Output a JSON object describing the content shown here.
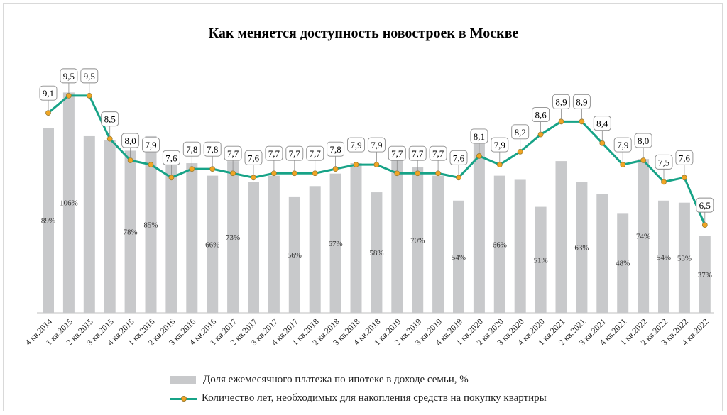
{
  "chart_data": {
    "type": "bar+line",
    "title": "Как меняется доступность новостроек в Москве",
    "categories": [
      "4 кв.2014",
      "1 кв.2015",
      "2 кв.2015",
      "3 кв.2015",
      "4 кв.2015",
      "1 кв.2016",
      "2 кв.2016",
      "3 кв.2016",
      "4 кв.2016",
      "1 кв.2017",
      "2 кв.2017",
      "3 кв.2017",
      "4 кв.2017",
      "1 кв.2018",
      "2 кв.2018",
      "3 кв.2018",
      "4 кв.2018",
      "1 кв.2019",
      "2 кв.2019",
      "3 кв.2019",
      "4 кв.2019",
      "1 кв.2020",
      "2 кв.2020",
      "3 кв.2020",
      "4 кв.2020",
      "1 кв.2021",
      "2 кв.2021",
      "3 кв.2021",
      "4 кв.2021",
      "1 кв.2022",
      "2 кв.2022",
      "3 кв.2022",
      "4 кв.2022"
    ],
    "series": [
      {
        "name": "Доля ежемесячного платежа по ипотеке в доходе семьи, %",
        "kind": "bar",
        "color": "#c8c9cb",
        "values": [
          89,
          106,
          85,
          83,
          78,
          85,
          78,
          72,
          66,
          73,
          63,
          66,
          56,
          61,
          67,
          72,
          58,
          79,
          70,
          66,
          54,
          84,
          66,
          64,
          51,
          73,
          63,
          57,
          48,
          74,
          54,
          53,
          37
        ],
        "labels": [
          "89%",
          "106%",
          "",
          "",
          "78%",
          "85%",
          "",
          "",
          "66%",
          "73%",
          "",
          "",
          "56%",
          "",
          "67%",
          "",
          "58%",
          "",
          "70%",
          "",
          "54%",
          "",
          "66%",
          "",
          "51%",
          "",
          "63%",
          "",
          "48%",
          "74%",
          "54%",
          "53%",
          "37%"
        ]
      },
      {
        "name": "Количество лет, необходимых для накопления средств на покупку квартиры",
        "kind": "line",
        "color": "#17a387",
        "marker_color": "#f0a524",
        "values": [
          9.1,
          9.5,
          9.5,
          8.5,
          8.0,
          7.9,
          7.6,
          7.8,
          7.8,
          7.7,
          7.6,
          7.7,
          7.7,
          7.7,
          7.8,
          7.9,
          7.9,
          7.7,
          7.7,
          7.7,
          7.6,
          8.1,
          7.9,
          8.2,
          8.6,
          8.9,
          8.9,
          8.4,
          7.9,
          8.0,
          7.5,
          7.6,
          6.5
        ],
        "labels": [
          "9,1",
          "9,5",
          "9,5",
          "8,5",
          "8,0",
          "7,9",
          "7,6",
          "7,8",
          "7,8",
          "7,7",
          "7,6",
          "7,7",
          "7,7",
          "7,7",
          "7,8",
          "7,9",
          "7,9",
          "7,7",
          "7,7",
          "7,7",
          "7,6",
          "8,1",
          "7,9",
          "8,2",
          "8,6",
          "8,9",
          "8,9",
          "8,4",
          "7,9",
          "8,0",
          "7,5",
          "7,6",
          "6,5"
        ]
      }
    ],
    "legend_position": "bottom",
    "grid": false
  }
}
